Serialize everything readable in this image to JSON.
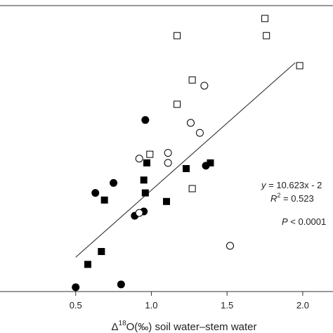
{
  "chart_data": {
    "type": "scatter",
    "title": "",
    "xlabel_prefix": "Δ",
    "xlabel_sup": "18",
    "xlabel_rest": "O(‰) soil water–stem water",
    "ylabel": "",
    "xlim": [
      0.0,
      2.2
    ],
    "ylim": [
      0.0,
      1.0
    ],
    "xticks": [
      0.5,
      1.0,
      1.5,
      2.0
    ],
    "xtick_labels": [
      "0.5",
      "1.0",
      "1.5",
      "2.0"
    ],
    "grid": false,
    "regression": {
      "x": [
        0.5,
        1.95
      ],
      "y": [
        0.12,
        0.8
      ],
      "equation_lead": "y",
      "equation_rest": " = 10.623x - 2",
      "r2_lead": "R",
      "r2_sup": "2",
      "r2_rest": " = 0.523",
      "p_lead": "P",
      "p_rest": " < 0.0001"
    },
    "series": [
      {
        "marker": "filled-circle",
        "points": [
          {
            "x": 0.5,
            "y": 0.015
          },
          {
            "x": 0.8,
            "y": 0.025
          },
          {
            "x": 0.89,
            "y": 0.265
          },
          {
            "x": 0.63,
            "y": 0.345
          },
          {
            "x": 0.75,
            "y": 0.38
          },
          {
            "x": 0.95,
            "y": 0.28
          },
          {
            "x": 0.96,
            "y": 0.6
          },
          {
            "x": 1.36,
            "y": 0.44
          }
        ]
      },
      {
        "marker": "filled-square",
        "points": [
          {
            "x": 0.58,
            "y": 0.095
          },
          {
            "x": 0.67,
            "y": 0.14
          },
          {
            "x": 0.69,
            "y": 0.32
          },
          {
            "x": 0.95,
            "y": 0.39
          },
          {
            "x": 0.96,
            "y": 0.345
          },
          {
            "x": 0.97,
            "y": 0.45
          },
          {
            "x": 1.1,
            "y": 0.315
          },
          {
            "x": 1.23,
            "y": 0.43
          },
          {
            "x": 1.39,
            "y": 0.45
          }
        ]
      },
      {
        "marker": "open-circle",
        "points": [
          {
            "x": 0.92,
            "y": 0.465
          },
          {
            "x": 0.92,
            "y": 0.275
          },
          {
            "x": 1.11,
            "y": 0.45
          },
          {
            "x": 1.11,
            "y": 0.485
          },
          {
            "x": 1.26,
            "y": 0.59
          },
          {
            "x": 1.32,
            "y": 0.555
          },
          {
            "x": 1.35,
            "y": 0.72
          },
          {
            "x": 1.52,
            "y": 0.16
          }
        ]
      },
      {
        "marker": "open-square",
        "points": [
          {
            "x": 0.99,
            "y": 0.48
          },
          {
            "x": 1.17,
            "y": 0.895
          },
          {
            "x": 1.17,
            "y": 0.655
          },
          {
            "x": 1.27,
            "y": 0.74
          },
          {
            "x": 1.27,
            "y": 0.36
          },
          {
            "x": 1.75,
            "y": 0.955
          },
          {
            "x": 1.76,
            "y": 0.895
          },
          {
            "x": 1.98,
            "y": 0.79
          }
        ]
      }
    ]
  }
}
